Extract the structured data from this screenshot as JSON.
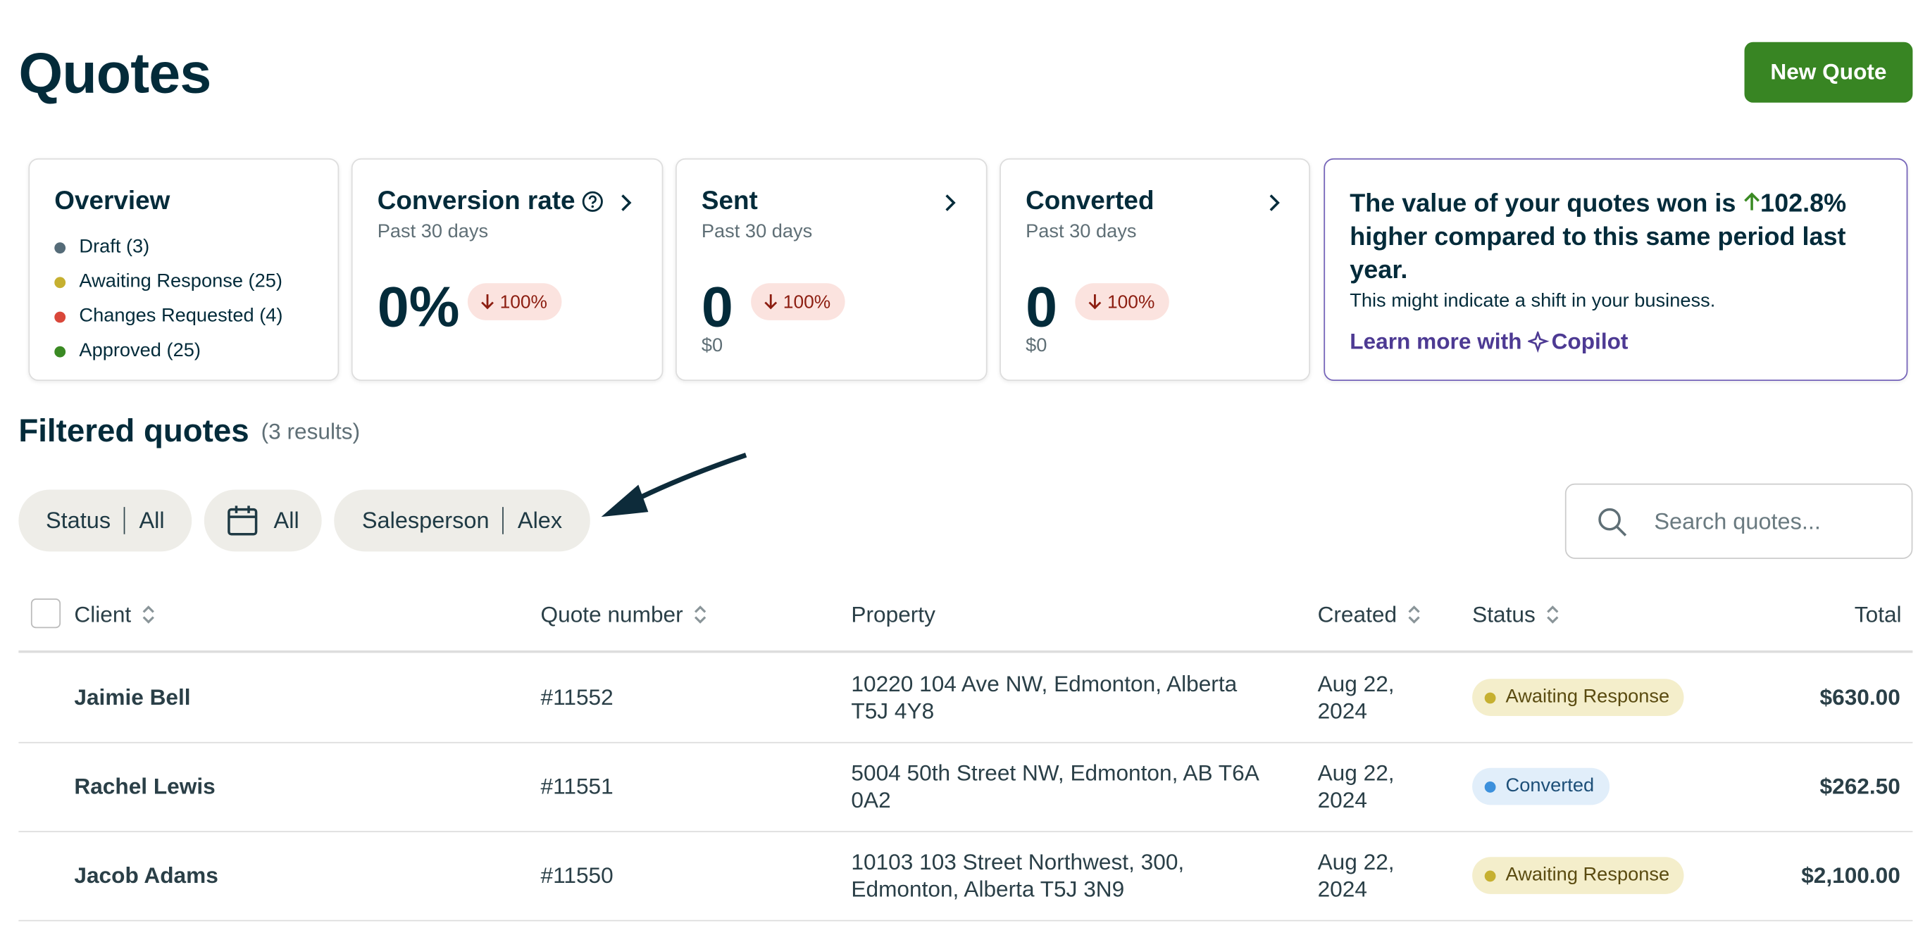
{
  "header": {
    "title": "Quotes",
    "button": "New Quote"
  },
  "overview": {
    "title": "Overview",
    "items": [
      "Draft (3)",
      "Awaiting Response (25)",
      "Changes Requested (4)",
      "Approved (25)"
    ]
  },
  "metrics": [
    {
      "title": "Conversion rate",
      "subtitle": "Past 30 days",
      "value": "0%",
      "change": "100%"
    },
    {
      "title": "Sent",
      "subtitle": "Past 30 days",
      "value": "0",
      "change": "100%",
      "amount": "$0"
    },
    {
      "title": "Converted",
      "subtitle": "Past 30 days",
      "value": "0",
      "change": "100%",
      "amount": "$0"
    }
  ],
  "insight": {
    "headline_start": "The value of your quotes won is",
    "highlight": "102.8%",
    "headline_end": "higher compared to this same period last year.",
    "body": "This might indicate a shift in your business.",
    "link": "Learn more with",
    "brand": "Copilot"
  },
  "filtered": {
    "title": "Filtered quotes",
    "count": "(3 results)"
  },
  "filters": [
    {
      "label": "Status",
      "value": "All"
    },
    {
      "value": "All"
    },
    {
      "label": "Salesperson",
      "value": "Alex"
    }
  ],
  "search": {
    "placeholder": "Search quotes..."
  },
  "table": {
    "columns": [
      "Client",
      "Quote number",
      "Property",
      "Created",
      "Status",
      "Total"
    ],
    "rows": [
      [
        "Jaimie Bell",
        "#11552",
        "10220 104 Ave NW, Edmonton, Alberta T5J 4Y8",
        "Aug 22, 2024",
        "Awaiting Response",
        "$630.00"
      ],
      [
        "Rachel Lewis",
        "#11551",
        "5004 50th Street NW, Edmonton, AB T6A 0A2",
        "Aug 22, 2024",
        "Converted",
        "$262.50"
      ],
      [
        "Jacob Adams",
        "#11550",
        "10103 103 Street Northwest, 300, Edmonton, Alberta T5J 3N9",
        "Aug 22, 2024",
        "Awaiting Response",
        "$2,100.00"
      ]
    ]
  }
}
